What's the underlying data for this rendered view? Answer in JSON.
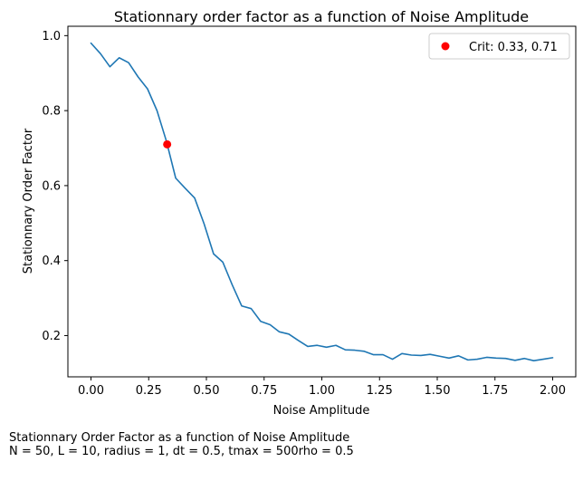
{
  "chart_data": {
    "type": "line",
    "title": "Stationnary order factor as a function of Noise Amplitude",
    "xlabel": "Noise Amplitude",
    "ylabel": "Stationnary Order Factor",
    "xlim": [
      -0.1,
      2.1
    ],
    "ylim": [
      0.09,
      1.025
    ],
    "xticks": [
      0.0,
      0.25,
      0.5,
      0.75,
      1.0,
      1.25,
      1.5,
      1.75,
      2.0
    ],
    "xtick_labels": [
      "0.00",
      "0.25",
      "0.50",
      "0.75",
      "1.00",
      "1.25",
      "1.50",
      "1.75",
      "2.00"
    ],
    "yticks": [
      0.2,
      0.4,
      0.6,
      0.8,
      1.0
    ],
    "ytick_labels": [
      "0.2",
      "0.4",
      "0.6",
      "0.8",
      "1.0"
    ],
    "grid": false,
    "legend_position": "top-right",
    "series": [
      {
        "color": "#1f77b4",
        "x": [
          0.0,
          0.041,
          0.082,
          0.122,
          0.163,
          0.204,
          0.245,
          0.286,
          0.327,
          0.367,
          0.408,
          0.449,
          0.49,
          0.531,
          0.571,
          0.612,
          0.653,
          0.694,
          0.735,
          0.776,
          0.816,
          0.857,
          0.898,
          0.939,
          0.98,
          1.02,
          1.061,
          1.102,
          1.143,
          1.184,
          1.224,
          1.265,
          1.306,
          1.347,
          1.388,
          1.429,
          1.469,
          1.51,
          1.551,
          1.592,
          1.633,
          1.673,
          1.714,
          1.755,
          1.796,
          1.837,
          1.878,
          1.918,
          1.959,
          2.0
        ],
        "y": [
          0.98,
          0.952,
          0.917,
          0.941,
          0.928,
          0.89,
          0.858,
          0.8,
          0.718,
          0.62,
          0.593,
          0.567,
          0.498,
          0.418,
          0.396,
          0.335,
          0.279,
          0.272,
          0.238,
          0.229,
          0.21,
          0.204,
          0.187,
          0.171,
          0.174,
          0.169,
          0.174,
          0.162,
          0.161,
          0.158,
          0.149,
          0.149,
          0.137,
          0.152,
          0.148,
          0.147,
          0.15,
          0.145,
          0.14,
          0.146,
          0.135,
          0.137,
          0.142,
          0.14,
          0.139,
          0.134,
          0.139,
          0.133,
          0.137,
          0.141
        ]
      }
    ],
    "marker": {
      "label": "Crit: 0.33, 0.71",
      "x": 0.33,
      "y": 0.71,
      "color": "#ff0000"
    }
  },
  "caption": {
    "line1": "Stationnary Order Factor as a function of Noise Amplitude",
    "line2": "N = 50, L = 10, radius = 1, dt = 0.5, tmax = 500rho = 0.5"
  }
}
